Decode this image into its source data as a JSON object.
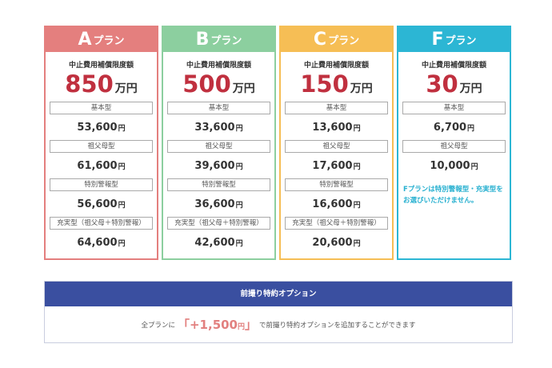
{
  "plans": [
    {
      "letter": "A",
      "word": "プラン",
      "color": "#e47f7e",
      "limit_label": "中止費用補償限度額",
      "limit_value": "850",
      "limit_unit": "万円",
      "types": [
        {
          "label": "基本型",
          "price": "53,600",
          "unit": "円"
        },
        {
          "label": "祖父母型",
          "price": "61,600",
          "unit": "円"
        },
        {
          "label": "特別警報型",
          "price": "56,600",
          "unit": "円"
        },
        {
          "label": "充実型（祖父母＋特別警報）",
          "price": "64,600",
          "unit": "円"
        }
      ]
    },
    {
      "letter": "B",
      "word": "プラン",
      "color": "#8ccf9f",
      "limit_label": "中止費用補償限度額",
      "limit_value": "500",
      "limit_unit": "万円",
      "types": [
        {
          "label": "基本型",
          "price": "33,600",
          "unit": "円"
        },
        {
          "label": "祖父母型",
          "price": "39,600",
          "unit": "円"
        },
        {
          "label": "特別警報型",
          "price": "36,600",
          "unit": "円"
        },
        {
          "label": "充実型（祖父母＋特別警報）",
          "price": "42,600",
          "unit": "円"
        }
      ]
    },
    {
      "letter": "C",
      "word": "プラン",
      "color": "#f6be55",
      "limit_label": "中止費用補償限度額",
      "limit_value": "150",
      "limit_unit": "万円",
      "types": [
        {
          "label": "基本型",
          "price": "13,600",
          "unit": "円"
        },
        {
          "label": "祖父母型",
          "price": "17,600",
          "unit": "円"
        },
        {
          "label": "特別警報型",
          "price": "16,600",
          "unit": "円"
        },
        {
          "label": "充実型（祖父母＋特別警報）",
          "price": "20,600",
          "unit": "円"
        }
      ]
    },
    {
      "letter": "F",
      "word": "プラン",
      "color": "#2cb6d4",
      "limit_label": "中止費用補償限度額",
      "limit_value": "30",
      "limit_unit": "万円",
      "types": [
        {
          "label": "基本型",
          "price": "6,700",
          "unit": "円"
        },
        {
          "label": "祖父母型",
          "price": "10,000",
          "unit": "円"
        }
      ],
      "note_line1": "Fプランは特別警報型・充実型を",
      "note_line2": "お選びいただけません。"
    }
  ],
  "limit_value_color": "#c0303f",
  "option": {
    "title": "前撮り特約オプション",
    "prefix": "全プランに",
    "bracket_open": "「",
    "price": "+1,500",
    "price_unit": "円",
    "bracket_close": "」",
    "suffix": "で前撮り特約オプションを追加することができます",
    "header_color": "#3a4fa0",
    "price_color": "#e2807f"
  }
}
